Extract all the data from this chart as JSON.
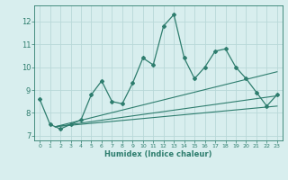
{
  "x_main": [
    0,
    1,
    2,
    3,
    4,
    5,
    6,
    7,
    8,
    9,
    10,
    11,
    12,
    13,
    14,
    15,
    16,
    17,
    18,
    19,
    20,
    21,
    22,
    23
  ],
  "y_main": [
    8.6,
    7.5,
    7.3,
    7.5,
    7.7,
    8.8,
    9.4,
    8.5,
    8.4,
    9.3,
    10.4,
    10.1,
    11.8,
    12.3,
    10.4,
    9.5,
    10.0,
    10.7,
    10.8,
    10.0,
    9.5,
    8.9,
    8.3,
    8.8
  ],
  "reg_lines": [
    {
      "x": [
        1.5,
        23
      ],
      "y": [
        7.4,
        9.8
      ]
    },
    {
      "x": [
        1.5,
        23
      ],
      "y": [
        7.4,
        8.75
      ]
    },
    {
      "x": [
        1.5,
        23
      ],
      "y": [
        7.4,
        8.3
      ]
    }
  ],
  "color_main": "#2e7d6e",
  "bg_color": "#d8eeee",
  "grid_color": "#b8d8d8",
  "xlabel": "Humidex (Indice chaleur)",
  "ylim": [
    6.8,
    12.7
  ],
  "xlim": [
    -0.5,
    23.5
  ],
  "yticks": [
    7,
    8,
    9,
    10,
    11,
    12
  ],
  "xticks": [
    0,
    1,
    2,
    3,
    4,
    5,
    6,
    7,
    8,
    9,
    10,
    11,
    12,
    13,
    14,
    15,
    16,
    17,
    18,
    19,
    20,
    21,
    22,
    23
  ]
}
